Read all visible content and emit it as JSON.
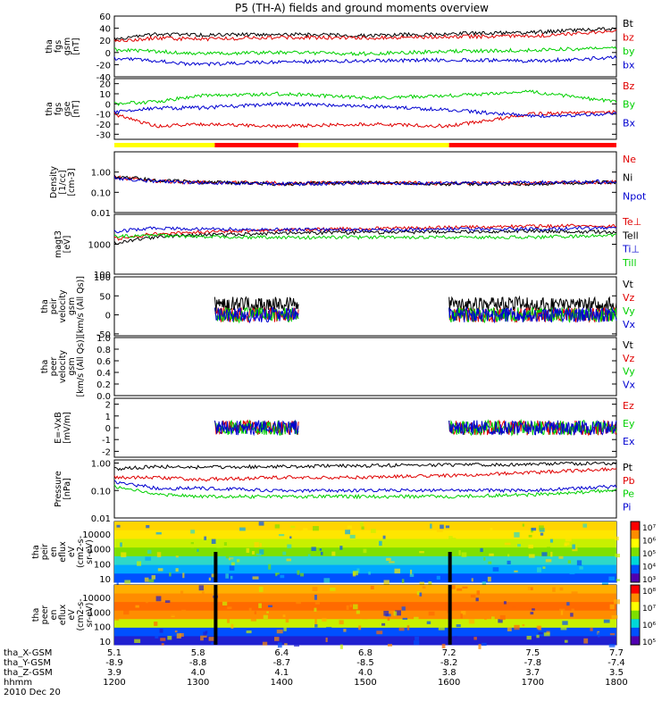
{
  "title": "P5 (TH-A) fields and ground moments overview",
  "colors": {
    "black": "#000000",
    "red": "#e00000",
    "green": "#00d000",
    "blue": "#0000d0",
    "yellow": "#ffff00",
    "barred": "#ff0000"
  },
  "time_axis": {
    "rows": [
      {
        "label": "tha_X-GSM",
        "values": [
          "5.1",
          "5.8",
          "6.4",
          "6.8",
          "7.2",
          "7.5",
          "7.7"
        ]
      },
      {
        "label": "tha_Y-GSM",
        "values": [
          "-8.9",
          "-8.8",
          "-8.7",
          "-8.5",
          "-8.2",
          "-7.8",
          "-7.4"
        ]
      },
      {
        "label": "tha_Z-GSM",
        "values": [
          "3.9",
          "4.0",
          "4.1",
          "4.0",
          "3.8",
          "3.7",
          "3.5"
        ]
      },
      {
        "label": "hhmm",
        "values": [
          "1200",
          "1300",
          "1400",
          "1500",
          "1600",
          "1700",
          "1800"
        ]
      }
    ],
    "date": "2010 Dec 20"
  },
  "chart_data": [
    {
      "type": "line",
      "panel": "fgs_gsm",
      "ylabel": [
        "tha",
        "fgs",
        "gsm",
        "[nT]"
      ],
      "yticks": [
        "60",
        "40",
        "20",
        "0",
        "-20",
        "-40"
      ],
      "ylim": [
        -40,
        60
      ],
      "x": [
        0,
        0.5,
        1,
        2,
        3,
        4,
        5,
        6
      ],
      "series": [
        {
          "name": "Bt",
          "color": "black",
          "values": [
            22,
            30,
            29,
            30,
            28,
            31,
            33,
            40
          ]
        },
        {
          "name": "bz",
          "color": "red",
          "values": [
            18,
            24,
            22,
            25,
            24,
            26,
            27,
            36
          ]
        },
        {
          "name": "by",
          "color": "green",
          "values": [
            5,
            2,
            -2,
            0,
            -2,
            2,
            4,
            8
          ]
        },
        {
          "name": "bx",
          "color": "blue",
          "values": [
            -10,
            -14,
            -20,
            -15,
            -14,
            -12,
            -14,
            -8
          ]
        }
      ]
    },
    {
      "type": "line",
      "panel": "fgs_gse",
      "ylabel": [
        "tha",
        "fgs",
        "gse",
        "[nT]"
      ],
      "yticks": [
        "20",
        "10",
        "0",
        "-10",
        "-20",
        "-30"
      ],
      "ylim": [
        -35,
        25
      ],
      "x": [
        0,
        0.5,
        1,
        2,
        3,
        4,
        5,
        6
      ],
      "series": [
        {
          "name": "Bz",
          "color": "red",
          "values": [
            -10,
            -22,
            -20,
            -22,
            -20,
            -22,
            -10,
            -8
          ]
        },
        {
          "name": "By",
          "color": "green",
          "values": [
            0,
            2,
            8,
            10,
            6,
            8,
            12,
            2
          ]
        },
        {
          "name": "Bx",
          "color": "blue",
          "values": [
            -8,
            -4,
            -4,
            0,
            -2,
            -6,
            -12,
            -10
          ]
        }
      ]
    },
    {
      "type": "line",
      "panel": "density",
      "scale": "log",
      "ylabel": [
        "Density",
        "[1/cc]",
        "[cm-3]"
      ],
      "yticks": [
        "1.00",
        "0.10",
        "0.01"
      ],
      "ylim": [
        0.01,
        10
      ],
      "x": [
        0,
        0.5,
        1,
        2,
        3,
        4,
        5,
        6
      ],
      "series": [
        {
          "name": "Ne",
          "color": "red",
          "values": [
            0.55,
            0.35,
            0.32,
            0.28,
            0.3,
            0.28,
            0.28,
            0.32
          ]
        },
        {
          "name": "Ni",
          "color": "black",
          "values": [
            0.6,
            0.38,
            0.32,
            0.26,
            0.3,
            0.26,
            0.26,
            0.32
          ]
        },
        {
          "name": "Npot",
          "color": "blue",
          "values": [
            0.5,
            0.34,
            0.3,
            0.26,
            0.28,
            0.28,
            0.3,
            0.35
          ]
        }
      ]
    },
    {
      "type": "line",
      "panel": "temperature",
      "scale": "log",
      "ylabel": [
        "magt3",
        "[eV]"
      ],
      "yticks": [
        "1000",
        "100"
      ],
      "ylim": [
        100,
        10000
      ],
      "x": [
        0,
        0.5,
        1,
        2,
        3,
        4,
        5,
        6
      ],
      "series": [
        {
          "name": "Te⊥",
          "color": "red",
          "values": [
            1500,
            2200,
            2500,
            3000,
            3300,
            3600,
            4000,
            4200
          ]
        },
        {
          "name": "Tell",
          "color": "black",
          "values": [
            1100,
            1700,
            2000,
            2300,
            2500,
            2600,
            2800,
            2500
          ]
        },
        {
          "name": "Ti⊥",
          "color": "blue",
          "values": [
            2600,
            3500,
            3200,
            3100,
            3000,
            3200,
            3200,
            3500
          ]
        },
        {
          "name": "Till",
          "color": "green",
          "values": [
            1800,
            2000,
            1800,
            1700,
            1700,
            1700,
            1700,
            2000
          ]
        }
      ]
    },
    {
      "type": "line",
      "panel": "peir_velocity",
      "ylabel": [
        "tha",
        "peir",
        "velocity",
        "gsm",
        "[km/s (All Qs)]"
      ],
      "yticks": [
        "100",
        "50",
        "0",
        "-50"
      ],
      "ylim": [
        -55,
        100
      ],
      "series": [
        {
          "name": "Vt",
          "color": "black"
        },
        {
          "name": "Vz",
          "color": "red"
        },
        {
          "name": "Vy",
          "color": "green"
        },
        {
          "name": "Vx",
          "color": "blue"
        }
      ]
    },
    {
      "type": "line",
      "panel": "peer_velocity",
      "ylabel": [
        "tha",
        "peer",
        "velocity",
        "gsm",
        "[km/s (All Qs)]"
      ],
      "yticks": [
        "1.0",
        "0.8",
        "0.6",
        "0.4",
        "0.2",
        "0.0"
      ],
      "ylim": [
        0,
        1
      ],
      "series": [
        {
          "name": "Vt",
          "color": "black"
        },
        {
          "name": "Vz",
          "color": "red"
        },
        {
          "name": "Vy",
          "color": "green"
        },
        {
          "name": "Vx",
          "color": "blue"
        }
      ]
    },
    {
      "type": "line",
      "panel": "efield",
      "ylabel": [
        "E=-VxB",
        "[mV/m]"
      ],
      "yticks": [
        "2",
        "1",
        "0",
        "-1",
        "-2"
      ],
      "ylim": [
        -2.5,
        2.5
      ],
      "series": [
        {
          "name": "Ez",
          "color": "red"
        },
        {
          "name": "Ey",
          "color": "green"
        },
        {
          "name": "Ex",
          "color": "blue"
        }
      ]
    },
    {
      "type": "line",
      "panel": "pressure",
      "scale": "log",
      "ylabel": [
        "Pressure",
        "[nPa]"
      ],
      "yticks": [
        "1.00",
        "0.10",
        "0.01"
      ],
      "ylim": [
        0.01,
        1.3
      ],
      "x": [
        0,
        0.5,
        1,
        2,
        3,
        4,
        5,
        6
      ],
      "series": [
        {
          "name": "Pt",
          "color": "black",
          "values": [
            0.6,
            0.75,
            0.7,
            0.75,
            0.8,
            0.85,
            0.9,
            1.0
          ]
        },
        {
          "name": "Pb",
          "color": "red",
          "values": [
            0.3,
            0.3,
            0.25,
            0.3,
            0.3,
            0.35,
            0.45,
            0.6
          ]
        },
        {
          "name": "Pe",
          "color": "green",
          "values": [
            0.14,
            0.07,
            0.06,
            0.06,
            0.06,
            0.06,
            0.07,
            0.1
          ]
        },
        {
          "name": "Pi",
          "color": "blue",
          "values": [
            0.2,
            0.12,
            0.12,
            0.1,
            0.1,
            0.1,
            0.1,
            0.14
          ]
        }
      ]
    },
    {
      "type": "heatmap",
      "panel": "peir_en_eflux",
      "ylabel": [
        "tha",
        "peir",
        "en",
        "eflux",
        "eV",
        "(cm2-s-",
        "sr-eV)"
      ],
      "yticks": [
        "10000",
        "1000",
        "100",
        "10"
      ],
      "colorbar_ticks": [
        "10⁷",
        "10⁶",
        "10⁵",
        "10⁴",
        "10³"
      ]
    },
    {
      "type": "heatmap",
      "panel": "peer_en_eflux",
      "ylabel": [
        "tha",
        "peer",
        "en",
        "eflux",
        "eV",
        "(cm2-s-",
        "sr-eV)"
      ],
      "yticks": [
        "10000",
        "1000",
        "100",
        "10"
      ],
      "colorbar_ticks": [
        "10⁸",
        "10⁷",
        "10⁶",
        "10⁵"
      ]
    }
  ]
}
